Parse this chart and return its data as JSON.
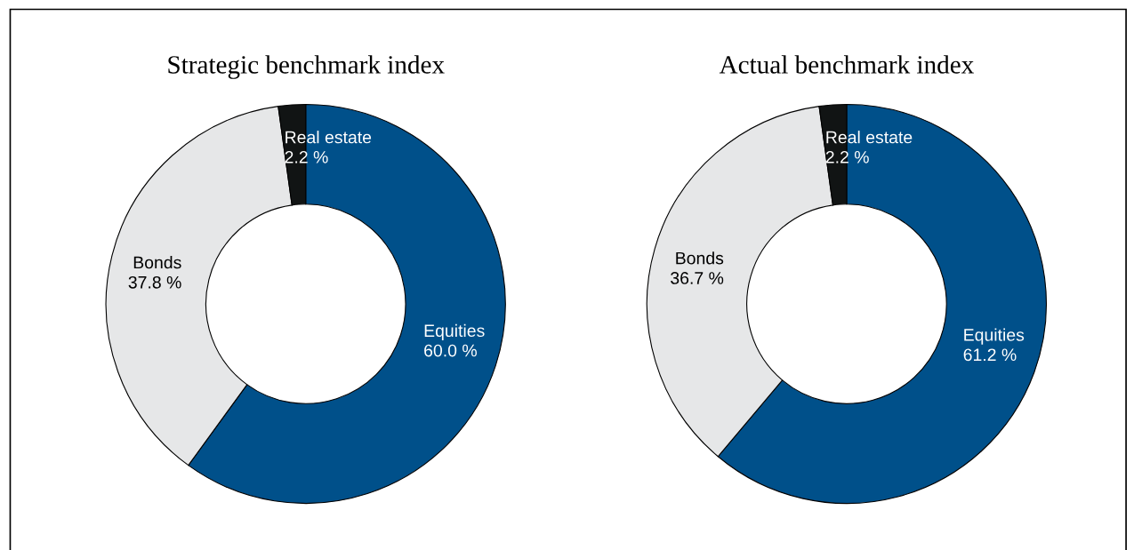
{
  "chart_data": [
    {
      "type": "donut",
      "title": "Strategic benchmark index",
      "categories": [
        "Equities",
        "Bonds",
        "Real estate"
      ],
      "values": [
        60.0,
        37.8,
        2.2
      ],
      "value_labels": [
        "60.0 %",
        "37.8 %",
        "2.2 %"
      ],
      "colors": [
        "#00508a",
        "#e6e7e8",
        "#111414"
      ]
    },
    {
      "type": "donut",
      "title": "Actual benchmark index",
      "categories": [
        "Equities",
        "Bonds",
        "Real estate"
      ],
      "values": [
        61.2,
        36.7,
        2.2
      ],
      "value_labels": [
        "61.2 %",
        "36.7 %",
        "2.2 %"
      ],
      "colors": [
        "#00508a",
        "#e6e7e8",
        "#111414"
      ]
    }
  ]
}
